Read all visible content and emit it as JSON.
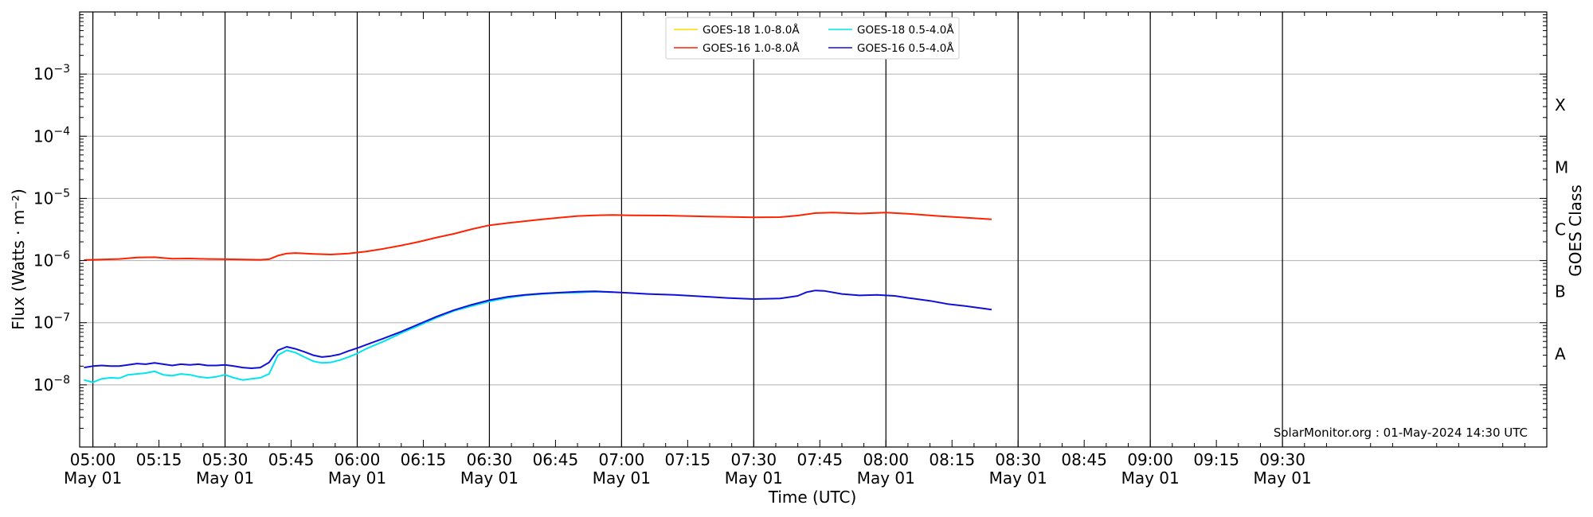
{
  "chart_data": {
    "type": "line",
    "title": "",
    "xlabel": "Time (UTC)",
    "ylabel": "Flux (Watts · m⁻²)",
    "y2label": "GOES Class",
    "yscale": "log",
    "ylim": [
      1e-09,
      0.01
    ],
    "xlim": [
      297,
      630
    ],
    "x_unit": "minutes after 00:00 UTC, 01-May-2024",
    "grid": "horizontal at decades",
    "legend_position": "top-center",
    "credit": "SolarMonitor.org : 01-May-2024 14:30 UTC",
    "x_ticks": [
      {
        "t": 300,
        "label": "05:00",
        "date": "May 01"
      },
      {
        "t": 315,
        "label": "05:15",
        "date": ""
      },
      {
        "t": 330,
        "label": "05:30",
        "date": "May 01"
      },
      {
        "t": 345,
        "label": "05:45",
        "date": ""
      },
      {
        "t": 360,
        "label": "06:00",
        "date": "May 01"
      },
      {
        "t": 375,
        "label": "06:15",
        "date": ""
      },
      {
        "t": 390,
        "label": "06:30",
        "date": "May 01"
      },
      {
        "t": 405,
        "label": "06:45",
        "date": ""
      },
      {
        "t": 420,
        "label": "07:00",
        "date": "May 01"
      },
      {
        "t": 435,
        "label": "07:15",
        "date": ""
      },
      {
        "t": 450,
        "label": "07:30",
        "date": "May 01"
      },
      {
        "t": 465,
        "label": "07:45",
        "date": ""
      },
      {
        "t": 480,
        "label": "08:00",
        "date": "May 01"
      },
      {
        "t": 495,
        "label": "08:15",
        "date": ""
      },
      {
        "t": 510,
        "label": "08:30",
        "date": "May 01"
      },
      {
        "t": 525,
        "label": "08:45",
        "date": ""
      },
      {
        "t": 540,
        "label": "09:00",
        "date": "May 01"
      },
      {
        "t": 555,
        "label": "09:15",
        "date": ""
      },
      {
        "t": 570,
        "label": "09:30",
        "date": "May 01"
      }
    ],
    "y_ticks": [
      {
        "exp": -8,
        "value": 1e-08
      },
      {
        "exp": -7,
        "value": 1e-07
      },
      {
        "exp": -6,
        "value": 1e-06
      },
      {
        "exp": -5,
        "value": 1e-05
      },
      {
        "exp": -4,
        "value": 0.0001
      },
      {
        "exp": -3,
        "value": 0.001
      }
    ],
    "vlines": [
      300,
      330,
      360,
      390,
      420,
      450,
      480,
      510,
      540,
      570
    ],
    "goes_classes": [
      {
        "label": "A",
        "value": 3.16e-08
      },
      {
        "label": "B",
        "value": 3.16e-07
      },
      {
        "label": "C",
        "value": 3.16e-06
      },
      {
        "label": "M",
        "value": 3.16e-05
      },
      {
        "label": "X",
        "value": 0.000316
      }
    ],
    "series": [
      {
        "name": "GOES-18 1.0-8.0Å",
        "color": "#ffd700",
        "points": []
      },
      {
        "name": "GOES-16 1.0-8.0Å",
        "color": "#ff2200",
        "points": [
          [
            298,
            1.02e-06
          ],
          [
            302,
            1.04e-06
          ],
          [
            306,
            1.06e-06
          ],
          [
            310,
            1.12e-06
          ],
          [
            314,
            1.13e-06
          ],
          [
            318,
            1.07e-06
          ],
          [
            322,
            1.08e-06
          ],
          [
            326,
            1.06e-06
          ],
          [
            330,
            1.05e-06
          ],
          [
            334,
            1.04e-06
          ],
          [
            338,
            1.03e-06
          ],
          [
            340,
            1.05e-06
          ],
          [
            342,
            1.2e-06
          ],
          [
            344,
            1.3e-06
          ],
          [
            346,
            1.32e-06
          ],
          [
            350,
            1.28e-06
          ],
          [
            354,
            1.25e-06
          ],
          [
            358,
            1.3e-06
          ],
          [
            362,
            1.4e-06
          ],
          [
            366,
            1.55e-06
          ],
          [
            370,
            1.75e-06
          ],
          [
            374,
            2e-06
          ],
          [
            378,
            2.35e-06
          ],
          [
            382,
            2.7e-06
          ],
          [
            386,
            3.2e-06
          ],
          [
            390,
            3.7e-06
          ],
          [
            394,
            4e-06
          ],
          [
            398,
            4.3e-06
          ],
          [
            402,
            4.6e-06
          ],
          [
            406,
            4.9e-06
          ],
          [
            410,
            5.2e-06
          ],
          [
            414,
            5.35e-06
          ],
          [
            418,
            5.4e-06
          ],
          [
            422,
            5.35e-06
          ],
          [
            430,
            5.3e-06
          ],
          [
            440,
            5.1e-06
          ],
          [
            450,
            4.95e-06
          ],
          [
            456,
            5e-06
          ],
          [
            460,
            5.3e-06
          ],
          [
            464,
            5.8e-06
          ],
          [
            468,
            5.9e-06
          ],
          [
            474,
            5.7e-06
          ],
          [
            480,
            5.9e-06
          ],
          [
            486,
            5.6e-06
          ],
          [
            492,
            5.2e-06
          ],
          [
            498,
            4.9e-06
          ],
          [
            504,
            4.6e-06
          ]
        ]
      },
      {
        "name": "GOES-18 0.5-4.0Å",
        "color": "#00e5ee",
        "points": [
          [
            298,
            1.2e-08
          ],
          [
            300,
            1.1e-08
          ],
          [
            302,
            1.25e-08
          ],
          [
            304,
            1.3e-08
          ],
          [
            306,
            1.28e-08
          ],
          [
            308,
            1.45e-08
          ],
          [
            310,
            1.5e-08
          ],
          [
            312,
            1.55e-08
          ],
          [
            314,
            1.65e-08
          ],
          [
            316,
            1.45e-08
          ],
          [
            318,
            1.4e-08
          ],
          [
            320,
            1.5e-08
          ],
          [
            322,
            1.45e-08
          ],
          [
            324,
            1.35e-08
          ],
          [
            326,
            1.3e-08
          ],
          [
            328,
            1.35e-08
          ],
          [
            330,
            1.45e-08
          ],
          [
            332,
            1.3e-08
          ],
          [
            334,
            1.2e-08
          ],
          [
            336,
            1.25e-08
          ],
          [
            338,
            1.3e-08
          ],
          [
            340,
            1.5e-08
          ],
          [
            342,
            3e-08
          ],
          [
            344,
            3.6e-08
          ],
          [
            346,
            3.3e-08
          ],
          [
            348,
            2.8e-08
          ],
          [
            350,
            2.4e-08
          ],
          [
            352,
            2.25e-08
          ],
          [
            354,
            2.3e-08
          ],
          [
            356,
            2.5e-08
          ],
          [
            358,
            2.8e-08
          ],
          [
            360,
            3.2e-08
          ],
          [
            362,
            3.8e-08
          ],
          [
            366,
            5e-08
          ],
          [
            370,
            6.8e-08
          ],
          [
            374,
            9e-08
          ],
          [
            378,
            1.2e-07
          ],
          [
            382,
            1.55e-07
          ],
          [
            386,
            1.85e-07
          ],
          [
            390,
            2.2e-07
          ],
          [
            394,
            2.5e-07
          ],
          [
            398,
            2.75e-07
          ],
          [
            402,
            2.9e-07
          ],
          [
            406,
            3e-07
          ],
          [
            410,
            3.05e-07
          ],
          [
            414,
            3.15e-07
          ],
          [
            418,
            3.1e-07
          ]
        ]
      },
      {
        "name": "GOES-16 0.5-4.0Å",
        "color": "#1010d8",
        "points": [
          [
            298,
            1.9e-08
          ],
          [
            300,
            2e-08
          ],
          [
            302,
            2.05e-08
          ],
          [
            304,
            2e-08
          ],
          [
            306,
            2e-08
          ],
          [
            308,
            2.1e-08
          ],
          [
            310,
            2.2e-08
          ],
          [
            312,
            2.15e-08
          ],
          [
            314,
            2.25e-08
          ],
          [
            316,
            2.15e-08
          ],
          [
            318,
            2.05e-08
          ],
          [
            320,
            2.15e-08
          ],
          [
            322,
            2.1e-08
          ],
          [
            324,
            2.15e-08
          ],
          [
            326,
            2.05e-08
          ],
          [
            328,
            2.05e-08
          ],
          [
            330,
            2.1e-08
          ],
          [
            332,
            2e-08
          ],
          [
            334,
            1.9e-08
          ],
          [
            336,
            1.85e-08
          ],
          [
            338,
            1.9e-08
          ],
          [
            340,
            2.3e-08
          ],
          [
            342,
            3.6e-08
          ],
          [
            344,
            4.1e-08
          ],
          [
            346,
            3.8e-08
          ],
          [
            348,
            3.4e-08
          ],
          [
            350,
            3e-08
          ],
          [
            352,
            2.8e-08
          ],
          [
            354,
            2.9e-08
          ],
          [
            356,
            3.1e-08
          ],
          [
            358,
            3.5e-08
          ],
          [
            360,
            3.9e-08
          ],
          [
            362,
            4.4e-08
          ],
          [
            366,
            5.6e-08
          ],
          [
            370,
            7.2e-08
          ],
          [
            374,
            9.5e-08
          ],
          [
            378,
            1.25e-07
          ],
          [
            382,
            1.6e-07
          ],
          [
            386,
            1.95e-07
          ],
          [
            390,
            2.3e-07
          ],
          [
            394,
            2.6e-07
          ],
          [
            398,
            2.8e-07
          ],
          [
            402,
            2.95e-07
          ],
          [
            406,
            3.05e-07
          ],
          [
            410,
            3.15e-07
          ],
          [
            414,
            3.2e-07
          ],
          [
            418,
            3.1e-07
          ],
          [
            422,
            3e-07
          ],
          [
            426,
            2.9e-07
          ],
          [
            432,
            2.8e-07
          ],
          [
            438,
            2.65e-07
          ],
          [
            444,
            2.5e-07
          ],
          [
            450,
            2.4e-07
          ],
          [
            456,
            2.45e-07
          ],
          [
            460,
            2.7e-07
          ],
          [
            462,
            3.1e-07
          ],
          [
            464,
            3.3e-07
          ],
          [
            466,
            3.25e-07
          ],
          [
            470,
            2.9e-07
          ],
          [
            474,
            2.75e-07
          ],
          [
            478,
            2.8e-07
          ],
          [
            482,
            2.7e-07
          ],
          [
            486,
            2.45e-07
          ],
          [
            490,
            2.25e-07
          ],
          [
            494,
            2e-07
          ],
          [
            498,
            1.85e-07
          ],
          [
            502,
            1.7e-07
          ],
          [
            504,
            1.62e-07
          ]
        ]
      }
    ]
  }
}
